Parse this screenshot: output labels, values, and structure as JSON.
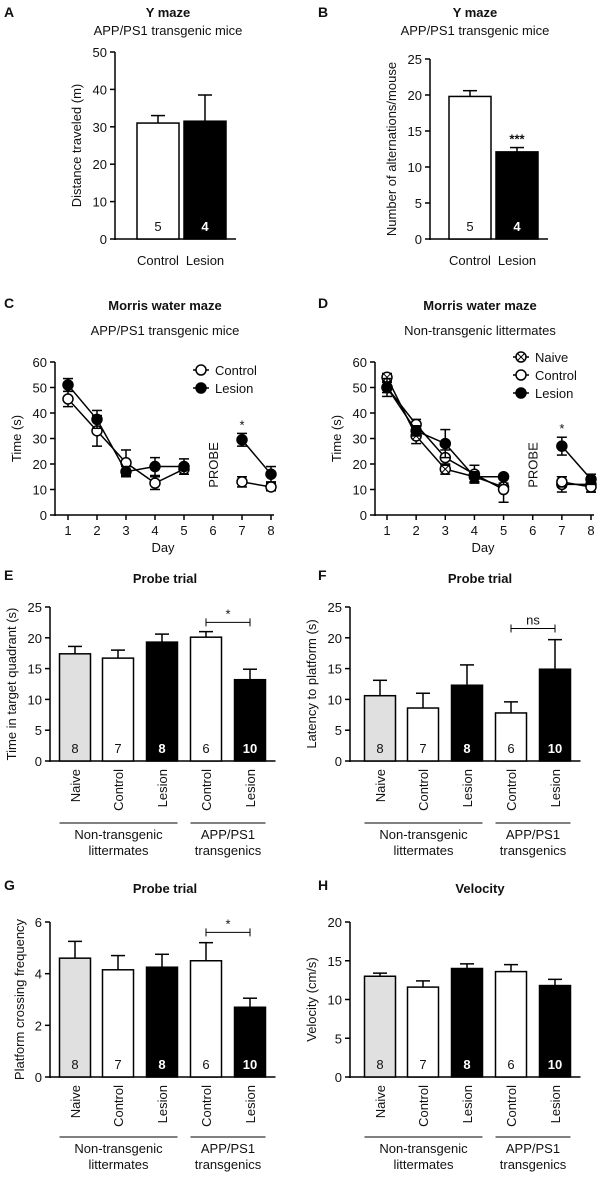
{
  "chart_data": [
    {
      "id": "A",
      "type": "bar",
      "label": "A",
      "title": "Y maze",
      "subtitle": "APP/PS1 transgenic mice",
      "ylabel": "Distance traveled (m)",
      "ylim": [
        0,
        50
      ],
      "ytick_step": 10,
      "categories": [
        "Control",
        "Lesion"
      ],
      "values": [
        31,
        31.5
      ],
      "errors": [
        2,
        7
      ],
      "n": [
        "5",
        "4"
      ],
      "colors": [
        "#ffffff",
        "#000000"
      ],
      "sig": [
        null,
        null
      ]
    },
    {
      "id": "B",
      "type": "bar",
      "label": "B",
      "title": "Y maze",
      "subtitle": "APP/PS1 transgenic mice",
      "ylabel": "Number of alternations/mouse",
      "ylim": [
        0,
        25
      ],
      "ytick_step": 5,
      "categories": [
        "Control",
        "Lesion"
      ],
      "values": [
        19.8,
        12.1
      ],
      "errors": [
        0.8,
        0.6
      ],
      "n": [
        "5",
        "4"
      ],
      "colors": [
        "#ffffff",
        "#000000"
      ],
      "sig": [
        null,
        "***"
      ]
    },
    {
      "id": "C",
      "type": "line",
      "label": "C",
      "title": "Morris water maze",
      "subtitle": "APP/PS1 transgenic mice",
      "ylabel": "Time (s)",
      "xlabel": "Day",
      "ylim": [
        0,
        60
      ],
      "ytick_step": 10,
      "x_ticks": [
        1,
        2,
        3,
        4,
        5,
        6,
        7,
        8
      ],
      "probe_label": "PROBE",
      "probe_day": 6,
      "sig_day": 7,
      "sig": "*",
      "legend": "top-right",
      "series": [
        {
          "name": "Control",
          "marker": "open",
          "x": [
            1,
            2,
            3,
            4,
            5,
            7,
            8
          ],
          "y": [
            45.5,
            33,
            20.5,
            12.5,
            18,
            13,
            11
          ],
          "err": [
            3,
            6,
            5,
            2.5,
            2,
            2,
            1.5
          ]
        },
        {
          "name": "Lesion",
          "marker": "filled",
          "x": [
            1,
            2,
            3,
            4,
            5,
            7,
            8
          ],
          "y": [
            51,
            37.5,
            17,
            19,
            19,
            29.5,
            16
          ],
          "err": [
            2.5,
            3.5,
            2,
            3.5,
            3,
            2.5,
            3
          ]
        }
      ]
    },
    {
      "id": "D",
      "type": "line",
      "label": "D",
      "title": "Morris water maze",
      "subtitle": "Non-transgenic littermates",
      "ylabel": "Time (s)",
      "xlabel": "Day",
      "ylim": [
        0,
        60
      ],
      "ytick_step": 10,
      "x_ticks": [
        1,
        2,
        3,
        4,
        5,
        6,
        7,
        8
      ],
      "probe_label": "PROBE",
      "probe_day": 6,
      "sig_day": 7,
      "sig": "*",
      "legend": "top-right",
      "series": [
        {
          "name": "Naive",
          "marker": "cross",
          "x": [
            1,
            2,
            3,
            4,
            5,
            7,
            8
          ],
          "y": [
            54,
            31,
            18,
            15,
            11,
            12,
            12
          ],
          "err": [
            1.5,
            3,
            2,
            2,
            1.5,
            3,
            3
          ]
        },
        {
          "name": "Control",
          "marker": "open",
          "x": [
            1,
            2,
            3,
            4,
            5,
            7,
            8
          ],
          "y": [
            50,
            35.5,
            22.5,
            16,
            10,
            13,
            11
          ],
          "err": [
            3.5,
            2,
            3,
            3.5,
            5,
            2,
            2
          ]
        },
        {
          "name": "Lesion",
          "marker": "filled",
          "x": [
            1,
            2,
            3,
            4,
            5,
            7,
            8
          ],
          "y": [
            50,
            33,
            28,
            15,
            15,
            27,
            14
          ],
          "err": [
            2,
            2,
            5.5,
            2,
            1,
            3.5,
            2
          ]
        }
      ]
    },
    {
      "id": "E",
      "type": "bar",
      "label": "E",
      "title": "Probe trial",
      "ylabel": "Time in target quadrant (s)",
      "ylim": [
        0,
        25
      ],
      "ytick_step": 5,
      "categories": [
        "Naive",
        "Control",
        "Lesion",
        "Control",
        "Lesion"
      ],
      "values": [
        17.4,
        16.7,
        19.3,
        20.1,
        13.2
      ],
      "errors": [
        1.2,
        1.3,
        1.3,
        0.9,
        1.7
      ],
      "n": [
        "8",
        "7",
        "8",
        "6",
        "10"
      ],
      "colors": [
        "#e0e0e0",
        "#ffffff",
        "#000000",
        "#ffffff",
        "#000000"
      ],
      "bracket": {
        "from": 3,
        "to": 4,
        "label": "*",
        "value": 22.5
      },
      "groups": [
        {
          "label": [
            "Non-transgenic",
            "littermates"
          ],
          "from": 0,
          "to": 2
        },
        {
          "label": [
            "APP/PS1",
            "transgenics"
          ],
          "from": 3,
          "to": 4
        }
      ]
    },
    {
      "id": "F",
      "type": "bar",
      "label": "F",
      "title": "Probe trial",
      "ylabel": "Latency to platform (s)",
      "ylim": [
        0,
        25
      ],
      "ytick_step": 5,
      "categories": [
        "Naive",
        "Control",
        "Lesion",
        "Control",
        "Lesion"
      ],
      "values": [
        10.6,
        8.6,
        12.3,
        7.8,
        14.9
      ],
      "errors": [
        2.5,
        2.4,
        3.3,
        1.8,
        4.8
      ],
      "n": [
        "8",
        "7",
        "8",
        "6",
        "10"
      ],
      "colors": [
        "#e0e0e0",
        "#ffffff",
        "#000000",
        "#ffffff",
        "#000000"
      ],
      "bracket": {
        "from": 3,
        "to": 4,
        "label": "ns",
        "value": 21.5
      },
      "groups": [
        {
          "label": [
            "Non-transgenic",
            "littermates"
          ],
          "from": 0,
          "to": 2
        },
        {
          "label": [
            "APP/PS1",
            "transgenics"
          ],
          "from": 3,
          "to": 4
        }
      ]
    },
    {
      "id": "G",
      "type": "bar",
      "label": "G",
      "title": "Probe trial",
      "ylabel": "Platform crossing frequency",
      "ylim": [
        0,
        6
      ],
      "ytick_step": 2,
      "categories": [
        "Naive",
        "Control",
        "Lesion",
        "Control",
        "Lesion"
      ],
      "values": [
        4.6,
        4.15,
        4.25,
        4.5,
        2.7
      ],
      "errors": [
        0.65,
        0.55,
        0.5,
        0.7,
        0.35
      ],
      "n": [
        "8",
        "7",
        "8",
        "6",
        "10"
      ],
      "colors": [
        "#e0e0e0",
        "#ffffff",
        "#000000",
        "#ffffff",
        "#000000"
      ],
      "bracket": {
        "from": 3,
        "to": 4,
        "label": "*",
        "value": 5.6
      },
      "groups": [
        {
          "label": [
            "Non-transgenic",
            "littermates"
          ],
          "from": 0,
          "to": 2
        },
        {
          "label": [
            "APP/PS1",
            "transgenics"
          ],
          "from": 3,
          "to": 4
        }
      ]
    },
    {
      "id": "H",
      "type": "bar",
      "label": "H",
      "title": "Velocity",
      "ylabel": "Velocity  (cm/s)",
      "ylim": [
        0,
        20
      ],
      "ytick_step": 5,
      "categories": [
        "Naive",
        "Control",
        "Lesion",
        "Control",
        "Lesion"
      ],
      "values": [
        13,
        11.6,
        14,
        13.6,
        11.8
      ],
      "errors": [
        0.4,
        0.8,
        0.6,
        0.9,
        0.8
      ],
      "n": [
        "8",
        "7",
        "8",
        "6",
        "10"
      ],
      "colors": [
        "#e0e0e0",
        "#ffffff",
        "#000000",
        "#ffffff",
        "#000000"
      ],
      "groups": [
        {
          "label": [
            "Non-transgenic",
            "littermates"
          ],
          "from": 0,
          "to": 2
        },
        {
          "label": [
            "APP/PS1",
            "transgenics"
          ],
          "from": 3,
          "to": 4
        }
      ]
    }
  ]
}
